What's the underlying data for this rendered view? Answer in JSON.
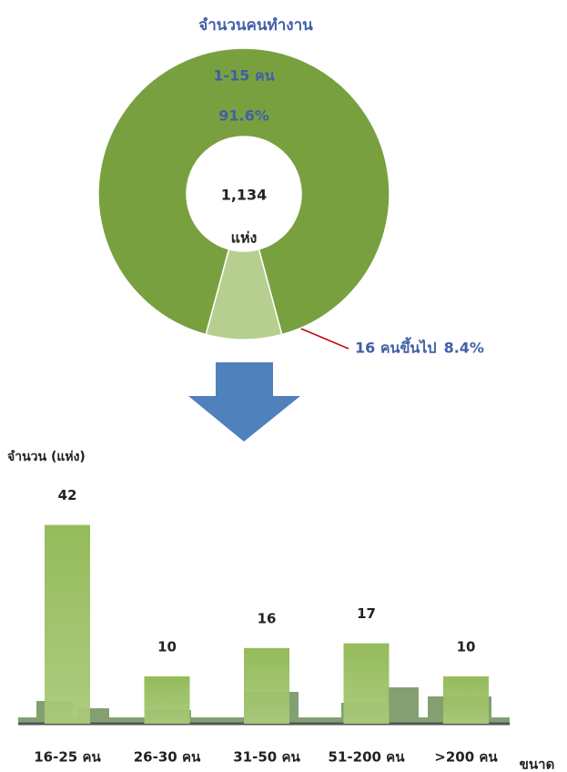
{
  "chart_data": [
    {
      "type": "donut",
      "title": "จำนวนคนทำงาน",
      "categories": [
        "1-15 คน",
        "16 คนขึ้นไป"
      ],
      "values": [
        91.6,
        8.4
      ],
      "value_labels": [
        "91.6%",
        "8.4%"
      ],
      "colors": [
        "#79a03f",
        "#b6cf8f"
      ],
      "center_value": {
        "value": 1134,
        "label": "1,134"
      },
      "center_unit": "แห่ง"
    },
    {
      "type": "bar",
      "y_label": "จำนวน (แห่ง)",
      "x_label": "ขนาด",
      "categories": [
        "16-25 คน",
        "26-30 คน",
        "31-50 คน",
        "51-200 คน",
        ">200 คน"
      ],
      "values": [
        42,
        10,
        16,
        17,
        10
      ],
      "color": "#8fb852",
      "ylim": [
        0,
        45
      ]
    }
  ]
}
